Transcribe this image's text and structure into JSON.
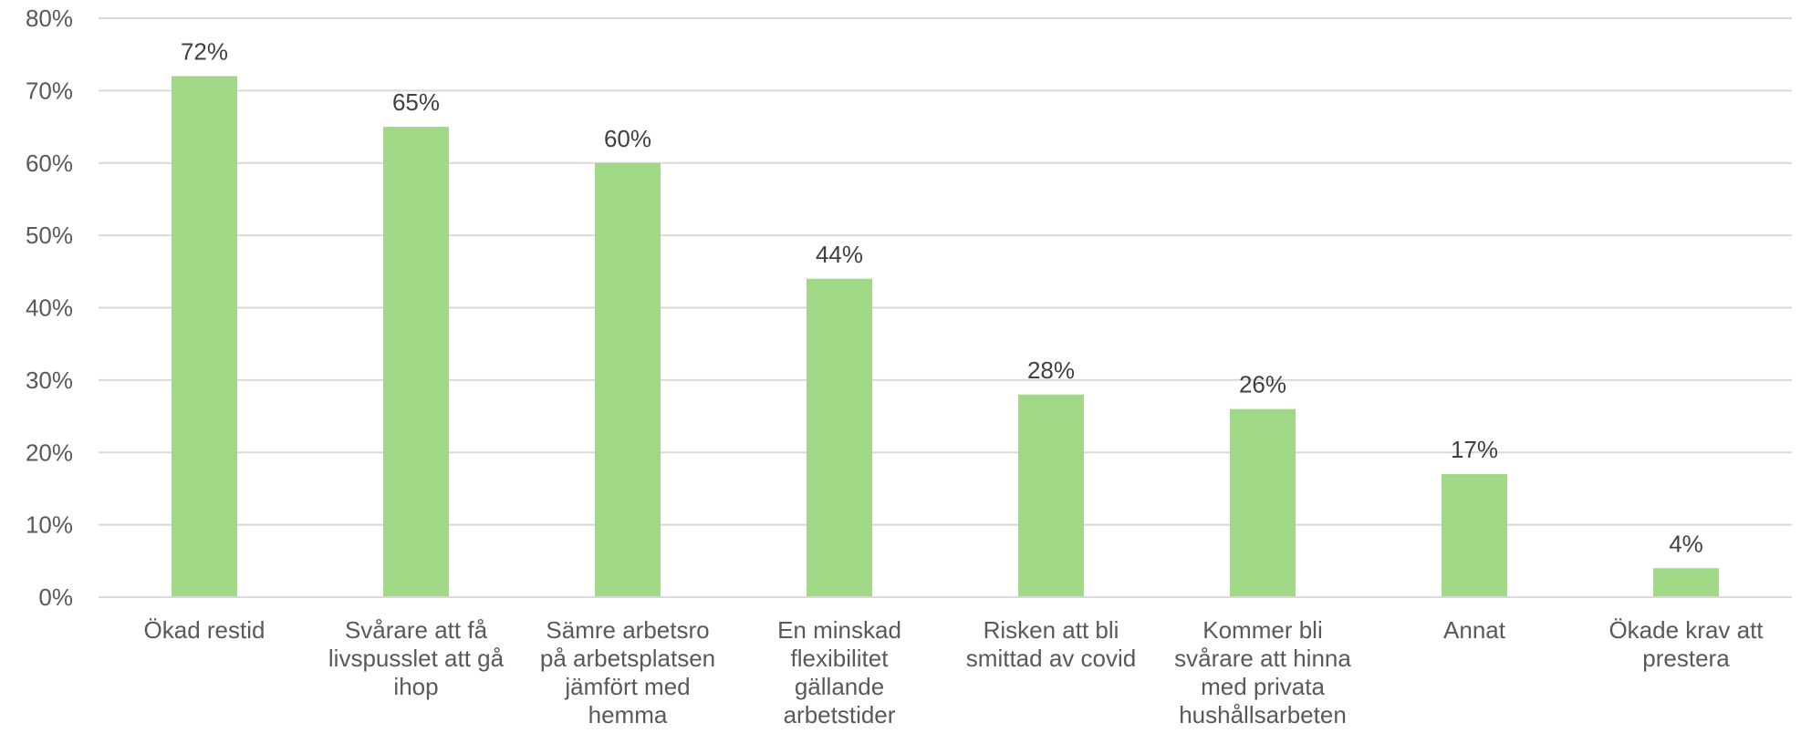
{
  "chart_data": {
    "type": "bar",
    "title": "",
    "xlabel": "",
    "ylabel": "",
    "ylim": [
      0,
      80
    ],
    "yticks": [
      0,
      10,
      20,
      30,
      40,
      50,
      60,
      70,
      80
    ],
    "ytick_labels": [
      "0%",
      "10%",
      "20%",
      "30%",
      "40%",
      "50%",
      "60%",
      "70%",
      "80%"
    ],
    "grid": true,
    "legend": "none",
    "bar_color": "#a0d886",
    "categories": [
      [
        "Ökad restid"
      ],
      [
        "Svårare att få",
        "livspusslet att gå",
        "ihop"
      ],
      [
        "Sämre arbetsro",
        "på arbetsplatsen",
        "jämfört med",
        "hemma"
      ],
      [
        "En minskad",
        "flexibilitet",
        "gällande",
        "arbetstider"
      ],
      [
        "Risken att bli",
        "smittad av covid"
      ],
      [
        "Kommer bli",
        "svårare att hinna",
        "med privata",
        "hushållsarbeten"
      ],
      [
        "Annat"
      ],
      [
        "Ökade krav att",
        "prestera"
      ]
    ],
    "values": [
      72,
      65,
      60,
      44,
      28,
      26,
      17,
      4
    ],
    "data_labels": [
      "72%",
      "65%",
      "60%",
      "44%",
      "28%",
      "26%",
      "17%",
      "4%"
    ]
  }
}
